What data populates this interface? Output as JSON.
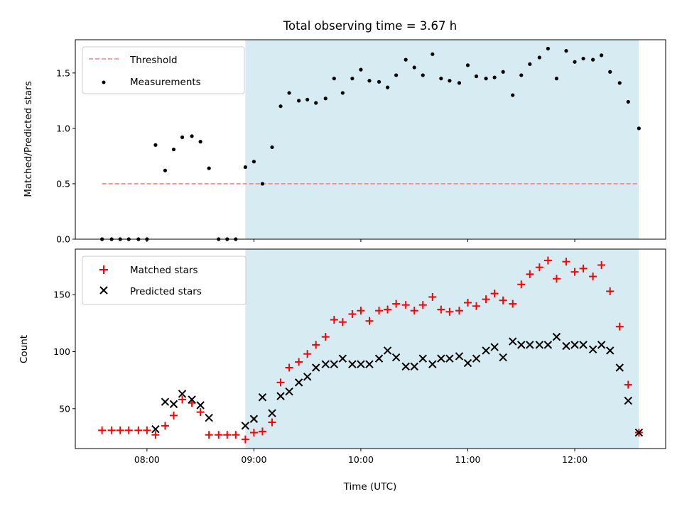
{
  "chart_data": {
    "type": "scatter",
    "title": "Total observing time = 3.67 h",
    "xlabel": "Time (UTC)",
    "x_ticks": [
      "08:00",
      "09:00",
      "10:00",
      "11:00",
      "12:00"
    ],
    "x_tick_values": [
      8.0,
      9.0,
      10.0,
      11.0,
      12.0
    ],
    "xlim": [
      7.33,
      12.85
    ],
    "shaded_interval": {
      "start": 8.92,
      "end": 12.6,
      "color": "#add8e6"
    },
    "top_panel": {
      "ylabel": "Matched/Predicted stars",
      "ylim": [
        0,
        1.8
      ],
      "y_ticks": [
        "0.0",
        "0.5",
        "1.0",
        "1.5"
      ],
      "y_tick_values": [
        0.0,
        0.5,
        1.0,
        1.5
      ],
      "legend": {
        "position": "upper left",
        "entries": [
          "Threshold",
          "Measurements"
        ]
      },
      "threshold": {
        "name": "Threshold",
        "value": 0.5,
        "x_range": [
          7.58,
          12.6
        ],
        "color": "#ff7f7f"
      },
      "measurements": {
        "name": "Measurements",
        "color": "#000000",
        "x": [
          7.58,
          7.67,
          7.75,
          7.83,
          7.92,
          8.0,
          8.08,
          8.17,
          8.25,
          8.33,
          8.42,
          8.5,
          8.58,
          8.67,
          8.75,
          8.83,
          8.92,
          9.0,
          9.08,
          9.17,
          9.25,
          9.33,
          9.42,
          9.5,
          9.58,
          9.67,
          9.75,
          9.83,
          9.92,
          10.0,
          10.08,
          10.17,
          10.25,
          10.33,
          10.42,
          10.5,
          10.58,
          10.67,
          10.75,
          10.83,
          10.92,
          11.0,
          11.08,
          11.17,
          11.25,
          11.33,
          11.42,
          11.5,
          11.58,
          11.67,
          11.75,
          11.83,
          11.92,
          12.0,
          12.08,
          12.17,
          12.25,
          12.33,
          12.42,
          12.5,
          12.6
        ],
        "y": [
          0,
          0,
          0,
          0,
          0,
          0,
          0.85,
          0.62,
          0.81,
          0.92,
          0.93,
          0.88,
          0.64,
          0,
          0,
          0,
          0.65,
          0.7,
          0.5,
          0.83,
          1.2,
          1.32,
          1.25,
          1.26,
          1.23,
          1.27,
          1.45,
          1.32,
          1.45,
          1.53,
          1.43,
          1.42,
          1.37,
          1.48,
          1.62,
          1.55,
          1.48,
          1.67,
          1.45,
          1.43,
          1.41,
          1.57,
          1.47,
          1.45,
          1.46,
          1.51,
          1.3,
          1.48,
          1.58,
          1.64,
          1.72,
          1.45,
          1.7,
          1.6,
          1.63,
          1.62,
          1.66,
          1.51,
          1.41,
          1.24,
          1.0
        ]
      }
    },
    "bottom_panel": {
      "ylabel": "Count",
      "ylim": [
        15,
        190
      ],
      "y_ticks": [
        "50",
        "100",
        "150"
      ],
      "y_tick_values": [
        50,
        100,
        150
      ],
      "legend": {
        "position": "upper left",
        "entries": [
          "Matched stars",
          "Predicted stars"
        ]
      },
      "series": [
        {
          "name": "Matched stars",
          "marker": "+",
          "color": "#ff0000",
          "x": [
            7.58,
            7.67,
            7.75,
            7.83,
            7.92,
            8.0,
            8.08,
            8.17,
            8.25,
            8.33,
            8.42,
            8.5,
            8.58,
            8.67,
            8.75,
            8.83,
            8.92,
            9.0,
            9.08,
            9.17,
            9.25,
            9.33,
            9.42,
            9.5,
            9.58,
            9.67,
            9.75,
            9.83,
            9.92,
            10.0,
            10.08,
            10.17,
            10.25,
            10.33,
            10.42,
            10.5,
            10.58,
            10.67,
            10.75,
            10.83,
            10.92,
            11.0,
            11.08,
            11.17,
            11.25,
            11.33,
            11.42,
            11.5,
            11.58,
            11.67,
            11.75,
            11.83,
            11.92,
            12.0,
            12.08,
            12.17,
            12.25,
            12.33,
            12.42,
            12.5,
            12.6
          ],
          "y": [
            31,
            31,
            31,
            31,
            31,
            31,
            27,
            35,
            44,
            58,
            55,
            47,
            27,
            27,
            27,
            27,
            23,
            29,
            30,
            38,
            73,
            86,
            91,
            98,
            106,
            113,
            128,
            126,
            133,
            136,
            127,
            136,
            137,
            142,
            141,
            136,
            141,
            148,
            137,
            135,
            136,
            143,
            140,
            146,
            151,
            145,
            142,
            159,
            168,
            174,
            180,
            164,
            179,
            170,
            173,
            166,
            176,
            153,
            122,
            71,
            29
          ]
        },
        {
          "name": "Predicted stars",
          "marker": "x",
          "color": "#000000",
          "x": [
            8.08,
            8.17,
            8.25,
            8.33,
            8.42,
            8.5,
            8.58,
            8.92,
            9.0,
            9.08,
            9.17,
            9.25,
            9.33,
            9.42,
            9.5,
            9.58,
            9.67,
            9.75,
            9.83,
            9.92,
            10.0,
            10.08,
            10.17,
            10.25,
            10.33,
            10.42,
            10.5,
            10.58,
            10.67,
            10.75,
            10.83,
            10.92,
            11.0,
            11.08,
            11.17,
            11.25,
            11.33,
            11.42,
            11.5,
            11.58,
            11.67,
            11.75,
            11.83,
            11.92,
            12.0,
            12.08,
            12.17,
            12.25,
            12.33,
            12.42,
            12.5,
            12.6
          ],
          "y": [
            32,
            56,
            54,
            63,
            58,
            53,
            42,
            35,
            41,
            60,
            46,
            61,
            65,
            73,
            78,
            86,
            89,
            89,
            94,
            89,
            89,
            89,
            94,
            101,
            95,
            87,
            87,
            94,
            89,
            94,
            94,
            96,
            90,
            94,
            101,
            104,
            95,
            109,
            106,
            106,
            106,
            106,
            113,
            105,
            106,
            106,
            102,
            106,
            101,
            86,
            57,
            29
          ]
        }
      ]
    }
  }
}
